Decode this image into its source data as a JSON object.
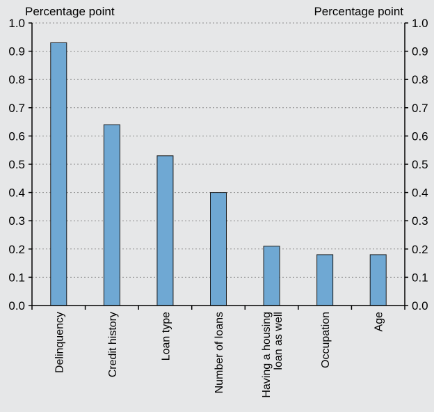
{
  "chart_data": {
    "type": "bar",
    "categories": [
      "Delinquency",
      "Credit history",
      "Loan type",
      "Number of loans",
      "Having a housing loan as well",
      "Occupation",
      "Age"
    ],
    "category_label_lines": [
      [
        "Delinquency"
      ],
      [
        "Credit history"
      ],
      [
        "Loan type"
      ],
      [
        "Number of loans"
      ],
      [
        "Having a housing",
        "loan as well"
      ],
      [
        "Occupation"
      ],
      [
        "Age"
      ]
    ],
    "values": [
      0.93,
      0.64,
      0.53,
      0.4,
      0.21,
      0.18,
      0.18
    ],
    "title": "",
    "ylabel_left": "Percentage point",
    "ylabel_right": "Percentage point",
    "ylim": [
      0,
      1.0
    ],
    "yticks": [
      "0.0",
      "0.1",
      "0.2",
      "0.3",
      "0.4",
      "0.5",
      "0.6",
      "0.7",
      "0.8",
      "0.9",
      "1.0"
    ],
    "grid": "horizontal dotted",
    "legend": "none",
    "colors": {
      "bar_fill": "#6fa8d3",
      "bar_stroke": "#1a1a1a",
      "background": "#e6e7e8",
      "grid": "#8a8a8a"
    }
  }
}
